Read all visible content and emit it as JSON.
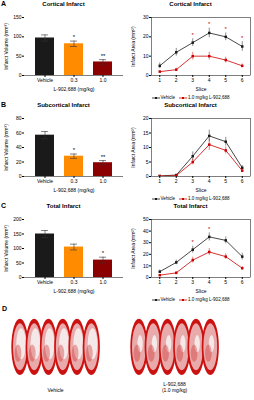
{
  "chart_data": [
    {
      "type": "bar",
      "title": "Cortical Infarct",
      "xlabel": "L-902,688 (mg/kg)",
      "ylabel": "Infarct Volume (mm³)",
      "categories": [
        "Vehicle",
        "0.3",
        "1.0"
      ],
      "values": [
        97,
        82,
        35
      ],
      "errors": [
        8,
        7,
        6
      ],
      "colors": [
        "#1a1a1a",
        "#ff8c00",
        "#8b0000"
      ],
      "ylim": [
        0,
        150
      ],
      "yticks": [
        0,
        50,
        100,
        150
      ],
      "annotations": [
        {
          "text": "A"
        },
        {
          "category": "0.3",
          "text": "*"
        },
        {
          "category": "1.0",
          "text": "**"
        }
      ]
    },
    {
      "type": "line",
      "title": "Cortical Infarct",
      "xlabel": "Slice",
      "ylabel": "Infarct Area (mm²)",
      "x": [
        1,
        2,
        3,
        4,
        5,
        6
      ],
      "series": [
        {
          "name": "Vehicle",
          "color": "#1a1a1a",
          "marker": "square",
          "values": [
            5,
            12,
            17,
            22,
            20,
            15
          ],
          "errors": [
            1.5,
            2,
            2,
            2.5,
            2,
            2.5
          ]
        },
        {
          "name": "1.0 mg/kg L-902,688",
          "color": "#cc0000",
          "marker": "square",
          "values": [
            2,
            3,
            10,
            10,
            8,
            5
          ],
          "errors": [
            0.5,
            0.8,
            2,
            2,
            1.5,
            1
          ]
        }
      ],
      "xlim": [
        0.5,
        6.5
      ],
      "xticks": [
        1,
        2,
        3,
        4,
        5,
        6
      ],
      "ylim": [
        0,
        30
      ],
      "yticks": [
        0,
        10,
        20,
        30
      ],
      "annotations": [
        {
          "x": 3,
          "text": "*",
          "color": "#cc0000"
        },
        {
          "x": 4,
          "text": "*",
          "color": "#cc0000"
        },
        {
          "x": 5,
          "text": "*",
          "color": "#cc0000"
        },
        {
          "x": 6,
          "text": "*",
          "color": "#cc0000"
        }
      ],
      "legend": "bottom"
    },
    {
      "type": "bar",
      "title": "Subcortical Infarct",
      "xlabel": "L-902,688 (mg/kg)",
      "ylabel": "Infarct Volume (mm³)",
      "categories": [
        "Vehicle",
        "0.3",
        "1.0"
      ],
      "values": [
        57,
        28,
        19
      ],
      "errors": [
        5,
        3,
        3
      ],
      "colors": [
        "#1a1a1a",
        "#ff8c00",
        "#8b0000"
      ],
      "ylim": [
        0,
        80
      ],
      "yticks": [
        0,
        20,
        40,
        60,
        80
      ],
      "annotations": [
        {
          "text": "B"
        },
        {
          "category": "0.3",
          "text": "*"
        },
        {
          "category": "1.0",
          "text": "**"
        }
      ]
    },
    {
      "type": "line",
      "title": "Subcortical Infarct",
      "xlabel": "Slice",
      "ylabel": "Infarct Area (mm²)",
      "x": [
        1,
        2,
        3,
        4,
        5,
        6
      ],
      "series": [
        {
          "name": "Vehicle",
          "color": "#1a1a1a",
          "marker": "square",
          "values": [
            0.2,
            0.5,
            7,
            14,
            12,
            3
          ],
          "errors": [
            0.1,
            0.2,
            1.5,
            2,
            1.5,
            0.8
          ]
        },
        {
          "name": "1.0 mg/kg L-902,688",
          "color": "#cc0000",
          "marker": "square",
          "values": [
            0.1,
            0.3,
            5,
            11,
            9,
            2
          ],
          "errors": [
            0.05,
            0.1,
            1,
            2,
            1.2,
            0.5
          ]
        }
      ],
      "xlim": [
        0.5,
        6.5
      ],
      "xticks": [
        1,
        2,
        3,
        4,
        5,
        6
      ],
      "ylim": [
        0,
        20
      ],
      "yticks": [
        0,
        5,
        10,
        15,
        20
      ],
      "legend": "bottom"
    },
    {
      "type": "bar",
      "title": "Total Infarct",
      "xlabel": "L-902,688 (mg/kg)",
      "ylabel": "Infarct Volume (mm³)",
      "categories": [
        "Vehicle",
        "0.3",
        "1.0"
      ],
      "values": [
        150,
        105,
        60
      ],
      "errors": [
        12,
        10,
        10
      ],
      "colors": [
        "#1a1a1a",
        "#ff8c00",
        "#8b0000"
      ],
      "ylim": [
        0,
        200
      ],
      "yticks": [
        0,
        50,
        100,
        150,
        200
      ],
      "annotations": [
        {
          "text": "C"
        },
        {
          "category": "1.0",
          "text": "*"
        }
      ]
    },
    {
      "type": "line",
      "title": "Total Infarct",
      "xlabel": "Slice",
      "ylabel": "Infarct Area (mm²)",
      "x": [
        1,
        2,
        3,
        4,
        5,
        6
      ],
      "series": [
        {
          "name": "Vehicle",
          "color": "#1a1a1a",
          "marker": "square",
          "values": [
            5,
            13,
            24,
            35,
            32,
            18
          ],
          "errors": [
            1.5,
            2,
            3,
            3.5,
            3,
            3
          ]
        },
        {
          "name": "1.0 mg/kg L-902,688",
          "color": "#cc0000",
          "marker": "square",
          "values": [
            2,
            4,
            15,
            22,
            18,
            8
          ],
          "errors": [
            0.5,
            1,
            2.5,
            3,
            2.5,
            1.5
          ]
        }
      ],
      "xlim": [
        0.5,
        6.5
      ],
      "xticks": [
        1,
        2,
        3,
        4,
        5,
        6
      ],
      "ylim": [
        0,
        50
      ],
      "yticks": [
        0,
        10,
        20,
        30,
        40,
        50
      ],
      "annotations": [
        {
          "x": 3,
          "text": "*",
          "color": "#cc0000"
        },
        {
          "x": 4,
          "text": "*",
          "color": "#cc0000"
        }
      ],
      "legend": "bottom"
    },
    {
      "type": "illustration",
      "annotations": [
        {
          "text": "D"
        }
      ],
      "categories": [
        "Vehicle",
        "L-902,688\n(1.0 mg/kg)"
      ]
    }
  ]
}
